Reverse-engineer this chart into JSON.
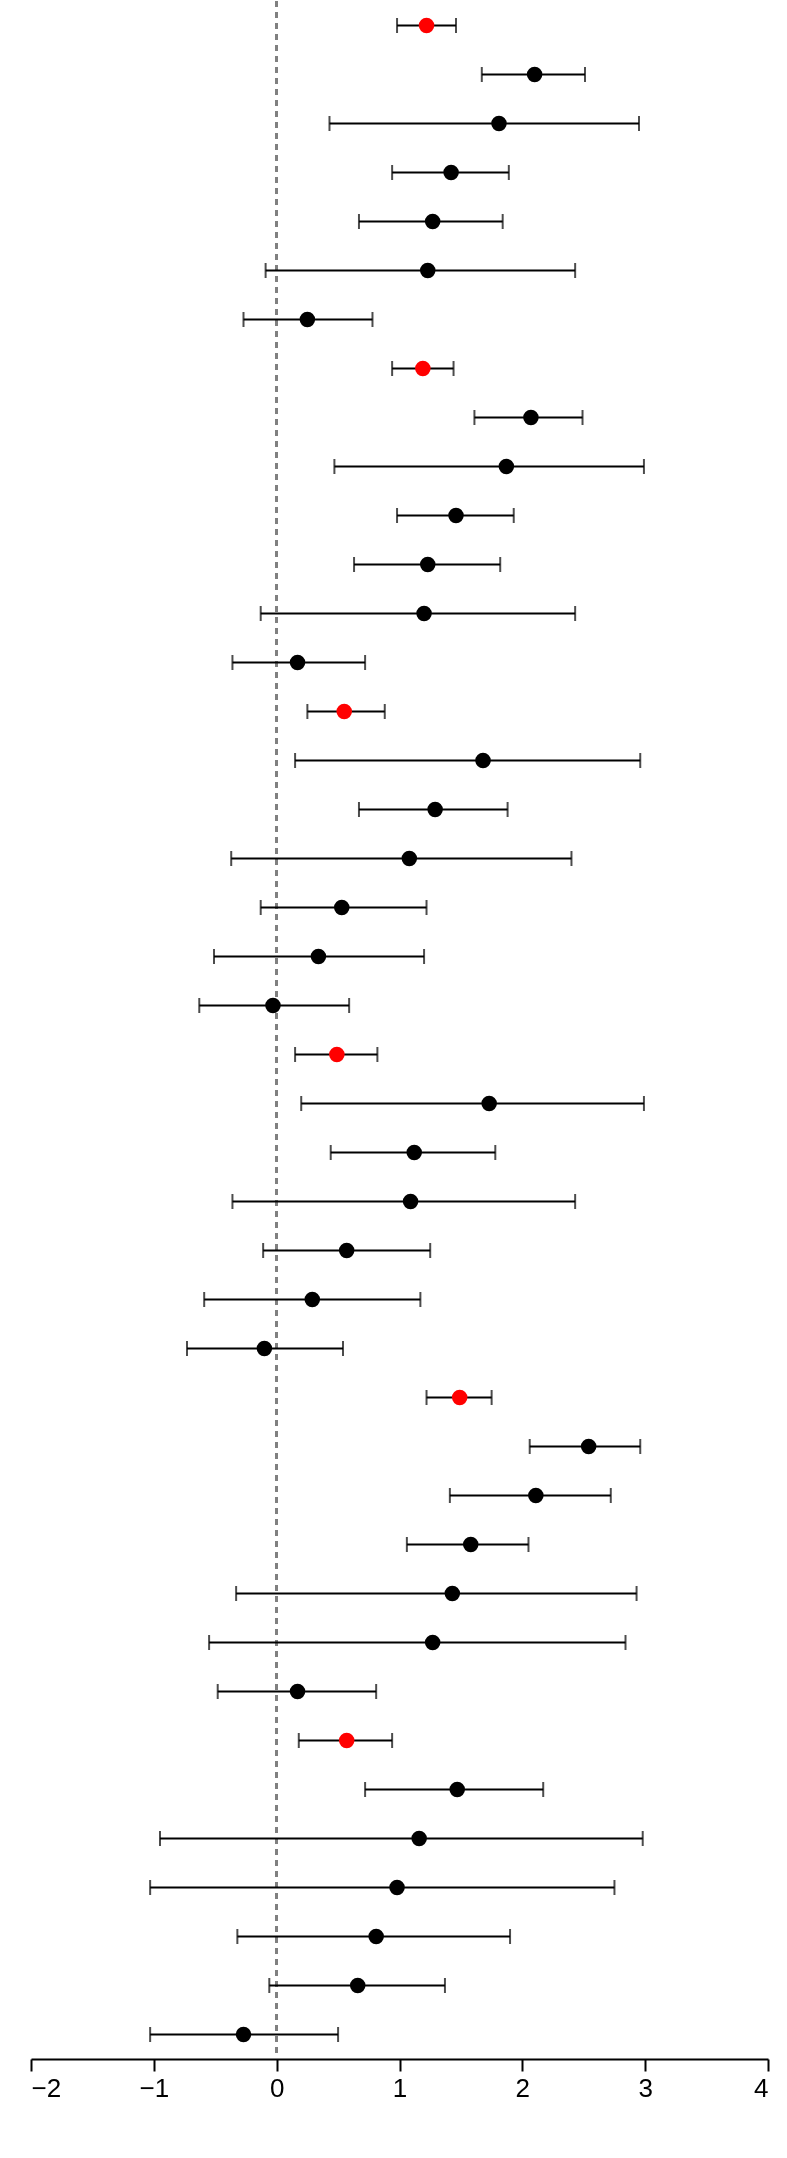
{
  "chart_data": {
    "type": "scatter",
    "orientation": "horizontal",
    "categories": [
      null,
      null,
      null,
      null,
      null,
      null,
      null,
      null,
      null,
      null,
      null,
      null,
      null,
      null,
      null,
      null,
      null,
      null,
      null,
      null,
      null,
      null,
      null,
      null,
      null,
      null,
      null,
      null,
      null,
      null,
      null,
      null,
      null,
      null,
      null,
      null,
      null,
      null,
      null,
      null,
      null,
      null
    ],
    "series": [
      {
        "color": "#000000",
        "values": [
          null,
          2.1,
          1.81,
          1.42,
          1.27,
          1.23,
          0.25,
          null,
          2.07,
          1.87,
          1.46,
          1.23,
          1.2,
          0.17,
          null,
          1.68,
          1.29,
          1.08,
          0.53,
          0.34,
          -0.03,
          null,
          1.73,
          1.12,
          1.09,
          0.57,
          0.29,
          -0.1,
          null,
          2.54,
          2.11,
          1.58,
          1.43,
          1.27,
          0.17,
          null,
          1.47,
          1.16,
          0.98,
          0.81,
          0.66,
          -0.27
        ],
        "errors": [
          null,
          [
            1.67,
            2.51
          ],
          [
            0.43,
            2.95
          ],
          [
            0.94,
            1.89
          ],
          [
            0.67,
            1.84
          ],
          [
            -0.09,
            2.43
          ],
          [
            -0.27,
            0.78
          ],
          null,
          [
            1.61,
            2.49
          ],
          [
            0.47,
            2.99
          ],
          [
            0.98,
            1.93
          ],
          [
            0.63,
            1.82
          ],
          [
            -0.13,
            2.43
          ],
          [
            -0.36,
            0.72
          ],
          null,
          [
            0.15,
            2.96
          ],
          [
            0.67,
            1.88
          ],
          [
            -0.37,
            2.4
          ],
          [
            -0.13,
            1.22
          ],
          [
            -0.51,
            1.2
          ],
          [
            -0.63,
            0.59
          ],
          null,
          [
            0.2,
            2.99
          ],
          [
            0.44,
            1.78
          ],
          [
            -0.36,
            2.43
          ],
          [
            -0.11,
            1.25
          ],
          [
            -0.59,
            1.17
          ],
          [
            -0.73,
            0.54
          ],
          null,
          [
            2.06,
            2.96
          ],
          [
            1.41,
            2.72
          ],
          [
            1.06,
            2.05
          ],
          [
            -0.33,
            2.93
          ],
          [
            -0.55,
            2.84
          ],
          [
            -0.48,
            0.81
          ],
          null,
          [
            0.72,
            2.17
          ],
          [
            -0.95,
            2.98
          ],
          [
            -1.03,
            2.75
          ],
          [
            -0.32,
            1.9
          ],
          [
            -0.06,
            1.37
          ],
          [
            -1.03,
            0.5
          ]
        ]
      },
      {
        "color": "#ff0000",
        "values": [
          1.22,
          null,
          null,
          null,
          null,
          null,
          null,
          1.19,
          null,
          null,
          null,
          null,
          null,
          null,
          0.55,
          null,
          null,
          null,
          null,
          null,
          null,
          0.49,
          null,
          null,
          null,
          null,
          null,
          null,
          1.49,
          null,
          null,
          null,
          null,
          null,
          null,
          0.57,
          null,
          null,
          null,
          null,
          null,
          null
        ],
        "errors": [
          [
            0.98,
            1.46
          ],
          null,
          null,
          null,
          null,
          null,
          null,
          [
            0.94,
            1.44
          ],
          null,
          null,
          null,
          null,
          null,
          null,
          [
            0.25,
            0.88
          ],
          null,
          null,
          null,
          null,
          null,
          null,
          [
            0.15,
            0.82
          ],
          null,
          null,
          null,
          null,
          null,
          null,
          [
            1.22,
            1.75
          ],
          null,
          null,
          null,
          null,
          null,
          null,
          [
            0.18,
            0.94
          ],
          null,
          null,
          null,
          null,
          null,
          null
        ]
      }
    ],
    "xlim": [
      -2,
      4
    ],
    "xticks": [
      -2,
      -1,
      0,
      1,
      2,
      3,
      4
    ],
    "ref_lines": [
      {
        "axis": "x",
        "value": 0,
        "color": "#808080",
        "line_style": "dashed"
      }
    ],
    "tick_labels": "x",
    "marker": "circle"
  }
}
